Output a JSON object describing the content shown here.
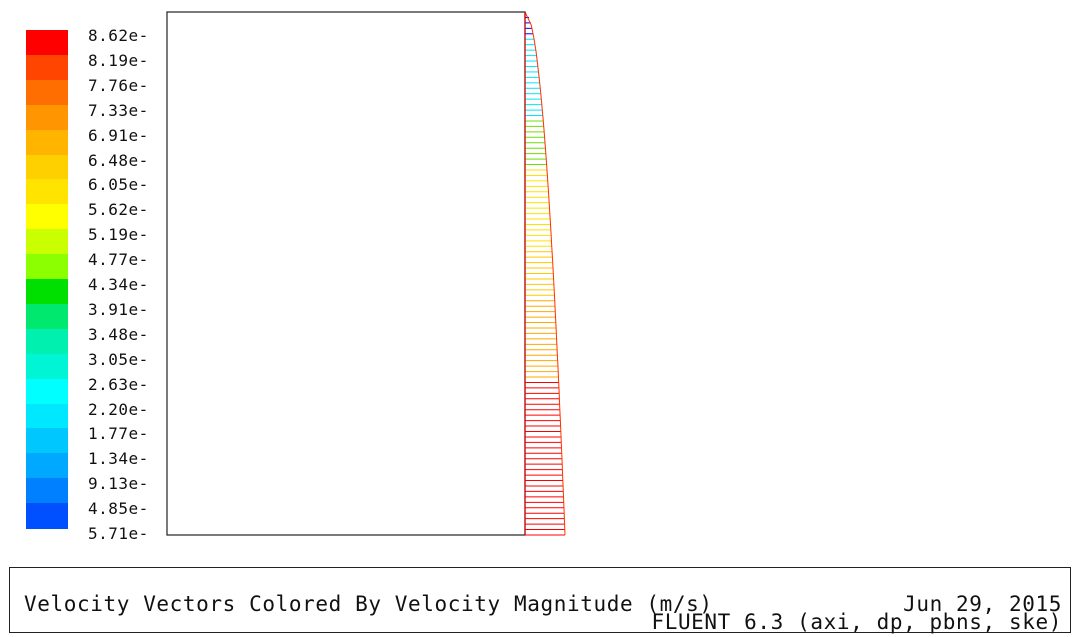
{
  "chart_data": {
    "type": "vector-field",
    "colormap": {
      "levels": [
        "8.62e-",
        "8.19e-",
        "7.76e-",
        "7.33e-",
        "6.91e-",
        "6.48e-",
        "6.05e-",
        "5.62e-",
        "5.19e-",
        "4.77e-",
        "4.34e-",
        "3.91e-",
        "3.48e-",
        "3.05e-",
        "2.63e-",
        "2.20e-",
        "1.77e-",
        "1.34e-",
        "9.13e-",
        "4.85e-",
        "5.71e-"
      ],
      "colors": [
        "#ff0000",
        "#ff4500",
        "#ff6e00",
        "#ff9500",
        "#ffb400",
        "#ffd000",
        "#ffe400",
        "#ffff00",
        "#c9ff00",
        "#8cff00",
        "#00e000",
        "#00e86e",
        "#00f0b0",
        "#00f5d5",
        "#00ffff",
        "#00e8ff",
        "#00c8ff",
        "#00a8ff",
        "#0080ff",
        "#0050ff",
        "#0000ff"
      ]
    },
    "profile": {
      "description_free": true,
      "rows": 36,
      "max_fraction": 1.0,
      "top_fraction": 0.0,
      "color_bands": [
        {
          "from": 0.0,
          "to": 0.05,
          "color": "#0000ff"
        },
        {
          "from": 0.05,
          "to": 0.2,
          "color": "#00e5ff"
        },
        {
          "from": 0.2,
          "to": 0.3,
          "color": "#6ee000"
        },
        {
          "from": 0.3,
          "to": 0.45,
          "color": "#ffe000"
        },
        {
          "from": 0.45,
          "to": 0.55,
          "color": "#ffc800"
        },
        {
          "from": 0.55,
          "to": 0.7,
          "color": "#ffa800"
        },
        {
          "from": 0.7,
          "to": 1.0,
          "color": "#ff0000"
        }
      ]
    }
  },
  "caption": {
    "title": "Velocity Vectors Colored By Velocity Magnitude (m/s)",
    "date": "Jun 29, 2015",
    "solver": "FLUENT 6.3 (axi, dp, pbns, ske)"
  }
}
